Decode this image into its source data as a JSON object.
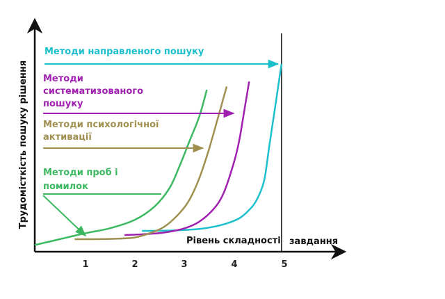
{
  "chart_data": {
    "type": "line",
    "title": "",
    "xlabel": [
      "Рівень складності",
      "завдання"
    ],
    "ylabel": "Трудомісткість пошуку рішення",
    "xlim": [
      0,
      5.6
    ],
    "ticks": [
      "1",
      "2",
      "3",
      "4",
      "5"
    ],
    "limit_line_x": 4.95,
    "series": [
      {
        "name": "Методи направленого пошуку",
        "name_lines": [
          "Методи направленого пошуку"
        ],
        "color": "#1cc0cc",
        "x": [
          2.15,
          2.6,
          3.0,
          3.4,
          3.8,
          4.1,
          4.3,
          4.45,
          4.6,
          4.7,
          4.8,
          4.9,
          4.95
        ],
        "y": [
          0.5,
          0.52,
          0.6,
          0.8,
          1.3,
          2.0,
          3.0,
          4.2,
          6.5,
          10.5,
          14.5,
          18.5,
          20.5
        ]
      },
      {
        "name": "Методи систематизованого пошуку",
        "name_lines": [
          "Методи",
          "систематизованого",
          "пошуку"
        ],
        "color": "#a020b0",
        "x": [
          1.8,
          2.2,
          2.6,
          3.0,
          3.3,
          3.6,
          3.8,
          4.0,
          4.1,
          4.2,
          4.3
        ],
        "y": [
          0.0,
          0.1,
          0.3,
          0.8,
          1.6,
          3.2,
          5.2,
          8.8,
          11.3,
          14.8,
          18.4
        ]
      },
      {
        "name": "Методи психологічної активації",
        "name_lines": [
          "Методи психологічної",
          "активації"
        ],
        "color": "#a09050",
        "x": [
          0.8,
          1.2,
          1.6,
          2.0,
          2.3,
          2.6,
          2.9,
          3.1,
          3.3,
          3.5,
          3.7,
          3.85
        ],
        "y": [
          -0.5,
          -0.5,
          -0.45,
          -0.3,
          0.2,
          1.0,
          2.6,
          4.2,
          6.8,
          10.4,
          14.6,
          17.8
        ]
      },
      {
        "name": "Методи проб і помилок",
        "name_lines": [
          "Методи проб і",
          "помилок"
        ],
        "color": "#3cb860",
        "x": [
          0.0,
          0.5,
          1.0,
          1.5,
          2.0,
          2.4,
          2.7,
          2.9,
          3.1,
          3.3,
          3.45
        ],
        "y": [
          -1.2,
          -0.5,
          0.2,
          0.8,
          1.8,
          3.4,
          5.6,
          8.2,
          11.2,
          14.2,
          17.4
        ]
      }
    ],
    "grid": false,
    "legend": "inline labels with arrows (left side)"
  }
}
